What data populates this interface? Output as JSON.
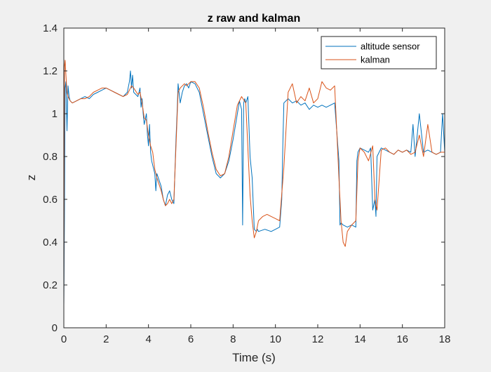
{
  "chart_data": {
    "type": "line",
    "title": "z raw and kalman",
    "xlabel": "Time (s)",
    "ylabel": "z",
    "xlim": [
      0,
      18
    ],
    "ylim": [
      0,
      1.4
    ],
    "xticks": [
      0,
      2,
      4,
      6,
      8,
      10,
      12,
      14,
      16,
      18
    ],
    "yticks": [
      0,
      0.2,
      0.4,
      0.6,
      0.8,
      1,
      1.2,
      1.4
    ],
    "xtick_labels": [
      "0",
      "2",
      "4",
      "6",
      "8",
      "10",
      "12",
      "14",
      "16",
      "18"
    ],
    "ytick_labels": [
      "0",
      "0.2",
      "0.4",
      "0.6",
      "0.8",
      "1",
      "1.2",
      "1.4"
    ],
    "grid": false,
    "legend_position": "top-right",
    "series": [
      {
        "name": "altitude sensor",
        "color": "#0072bd",
        "x": [
          0,
          0.03,
          0.06,
          0.1,
          0.15,
          0.2,
          0.25,
          0.3,
          0.4,
          0.6,
          0.8,
          1.0,
          1.2,
          1.4,
          1.6,
          1.8,
          2.0,
          2.2,
          2.4,
          2.6,
          2.8,
          3.0,
          3.1,
          3.15,
          3.2,
          3.25,
          3.3,
          3.5,
          3.6,
          3.65,
          3.7,
          3.75,
          3.8,
          3.9,
          3.95,
          4.0,
          4.05,
          4.1,
          4.15,
          4.2,
          4.25,
          4.3,
          4.35,
          4.4,
          4.6,
          4.7,
          4.8,
          4.9,
          5.0,
          5.1,
          5.2,
          5.3,
          5.35,
          5.4,
          5.5,
          5.6,
          5.7,
          5.8,
          5.9,
          6.0,
          6.2,
          6.4,
          6.6,
          6.8,
          7.0,
          7.2,
          7.4,
          7.6,
          7.8,
          8.0,
          8.2,
          8.3,
          8.4,
          8.45,
          8.5,
          8.55,
          8.6,
          8.7,
          8.8,
          8.9,
          9.0,
          9.1,
          9.15,
          9.2,
          9.5,
          9.8,
          10.0,
          10.2,
          10.3,
          10.35,
          10.4,
          10.6,
          10.8,
          11.0,
          11.2,
          11.4,
          11.6,
          11.8,
          12.0,
          12.2,
          12.4,
          12.6,
          12.8,
          13.0,
          13.05,
          13.1,
          13.2,
          13.4,
          13.6,
          13.8,
          13.85,
          13.9,
          14.0,
          14.2,
          14.4,
          14.5,
          14.6,
          14.7,
          14.75,
          14.8,
          14.9,
          15.0,
          15.2,
          15.4,
          15.6,
          15.8,
          16.0,
          16.2,
          16.4,
          16.5,
          16.6,
          16.8,
          17.0,
          17.2,
          17.4,
          17.6,
          17.8,
          17.9,
          18.0
        ],
        "y": [
          0.1,
          0.5,
          1.12,
          1.15,
          0.92,
          1.13,
          1.08,
          1.06,
          1.05,
          1.06,
          1.07,
          1.08,
          1.07,
          1.09,
          1.1,
          1.11,
          1.12,
          1.11,
          1.1,
          1.09,
          1.08,
          1.1,
          1.15,
          1.2,
          1.12,
          1.18,
          1.1,
          1.08,
          1.12,
          1.03,
          1.07,
          1.0,
          0.95,
          1.0,
          0.9,
          0.85,
          0.95,
          0.82,
          0.78,
          0.76,
          0.74,
          0.72,
          0.64,
          0.72,
          0.66,
          0.6,
          0.57,
          0.62,
          0.64,
          0.6,
          0.58,
          0.88,
          1.0,
          1.14,
          1.05,
          1.1,
          1.13,
          1.14,
          1.12,
          1.15,
          1.14,
          1.1,
          1.0,
          0.9,
          0.8,
          0.72,
          0.7,
          0.72,
          0.78,
          0.88,
          1.0,
          1.06,
          1.02,
          0.48,
          1.05,
          1.07,
          1.05,
          1.08,
          0.8,
          0.7,
          0.46,
          0.45,
          0.46,
          0.45,
          0.46,
          0.45,
          0.46,
          0.47,
          0.6,
          0.85,
          1.05,
          1.07,
          1.05,
          1.06,
          1.04,
          1.05,
          1.02,
          1.04,
          1.03,
          1.04,
          1.03,
          1.04,
          1.05,
          0.78,
          0.48,
          0.49,
          0.48,
          0.47,
          0.48,
          0.47,
          0.78,
          0.82,
          0.84,
          0.83,
          0.82,
          0.84,
          0.55,
          0.6,
          0.52,
          0.8,
          0.82,
          0.84,
          0.83,
          0.82,
          0.81,
          0.83,
          0.82,
          0.83,
          0.82,
          0.95,
          0.8,
          1.0,
          0.82,
          0.83,
          0.82,
          0.81,
          0.82,
          1.0,
          0.82
        ]
      },
      {
        "name": "kalman",
        "color": "#d95319",
        "x": [
          0,
          0.03,
          0.06,
          0.1,
          0.15,
          0.2,
          0.25,
          0.3,
          0.4,
          0.6,
          0.8,
          1.0,
          1.2,
          1.4,
          1.6,
          1.8,
          2.0,
          2.2,
          2.4,
          2.6,
          2.8,
          3.0,
          3.2,
          3.3,
          3.5,
          3.6,
          3.7,
          3.8,
          3.9,
          4.0,
          4.1,
          4.2,
          4.3,
          4.4,
          4.6,
          4.7,
          4.8,
          4.9,
          5.0,
          5.1,
          5.2,
          5.3,
          5.4,
          5.5,
          5.6,
          5.7,
          5.8,
          5.9,
          6.0,
          6.2,
          6.4,
          6.6,
          6.8,
          7.0,
          7.2,
          7.4,
          7.6,
          7.8,
          8.0,
          8.2,
          8.4,
          8.6,
          8.8,
          8.9,
          9.0,
          9.1,
          9.2,
          9.4,
          9.6,
          9.8,
          10.0,
          10.2,
          10.4,
          10.6,
          10.8,
          11.0,
          11.2,
          11.4,
          11.6,
          11.8,
          12.0,
          12.2,
          12.4,
          12.6,
          12.8,
          13.0,
          13.1,
          13.2,
          13.3,
          13.4,
          13.6,
          13.8,
          13.9,
          14.0,
          14.2,
          14.4,
          14.6,
          14.7,
          14.8,
          15.0,
          15.2,
          15.4,
          15.6,
          15.8,
          16.0,
          16.2,
          16.4,
          16.6,
          16.8,
          17.0,
          17.2,
          17.4,
          17.6,
          17.8,
          18.0
        ],
        "y": [
          0.1,
          1.22,
          1.25,
          1.18,
          1.1,
          1.08,
          1.07,
          1.06,
          1.05,
          1.06,
          1.07,
          1.07,
          1.08,
          1.1,
          1.11,
          1.12,
          1.12,
          1.11,
          1.1,
          1.09,
          1.08,
          1.09,
          1.13,
          1.12,
          1.09,
          1.1,
          1.05,
          0.98,
          0.97,
          0.9,
          0.85,
          0.82,
          0.74,
          0.7,
          0.64,
          0.6,
          0.57,
          0.58,
          0.6,
          0.58,
          0.6,
          0.85,
          1.1,
          1.12,
          1.13,
          1.14,
          1.13,
          1.14,
          1.15,
          1.15,
          1.12,
          1.03,
          0.92,
          0.82,
          0.74,
          0.71,
          0.72,
          0.8,
          0.92,
          1.04,
          1.08,
          1.05,
          0.62,
          0.5,
          0.42,
          0.45,
          0.5,
          0.52,
          0.53,
          0.52,
          0.51,
          0.5,
          0.75,
          1.1,
          1.14,
          1.05,
          1.08,
          1.06,
          1.12,
          1.05,
          1.07,
          1.15,
          1.12,
          1.11,
          1.13,
          0.7,
          0.5,
          0.4,
          0.38,
          0.45,
          0.48,
          0.5,
          0.78,
          0.84,
          0.82,
          0.78,
          0.85,
          0.6,
          0.55,
          0.83,
          0.84,
          0.82,
          0.81,
          0.83,
          0.82,
          0.83,
          0.81,
          0.82,
          0.9,
          0.8,
          0.95,
          0.82,
          0.81,
          0.82,
          0.82
        ]
      }
    ]
  }
}
